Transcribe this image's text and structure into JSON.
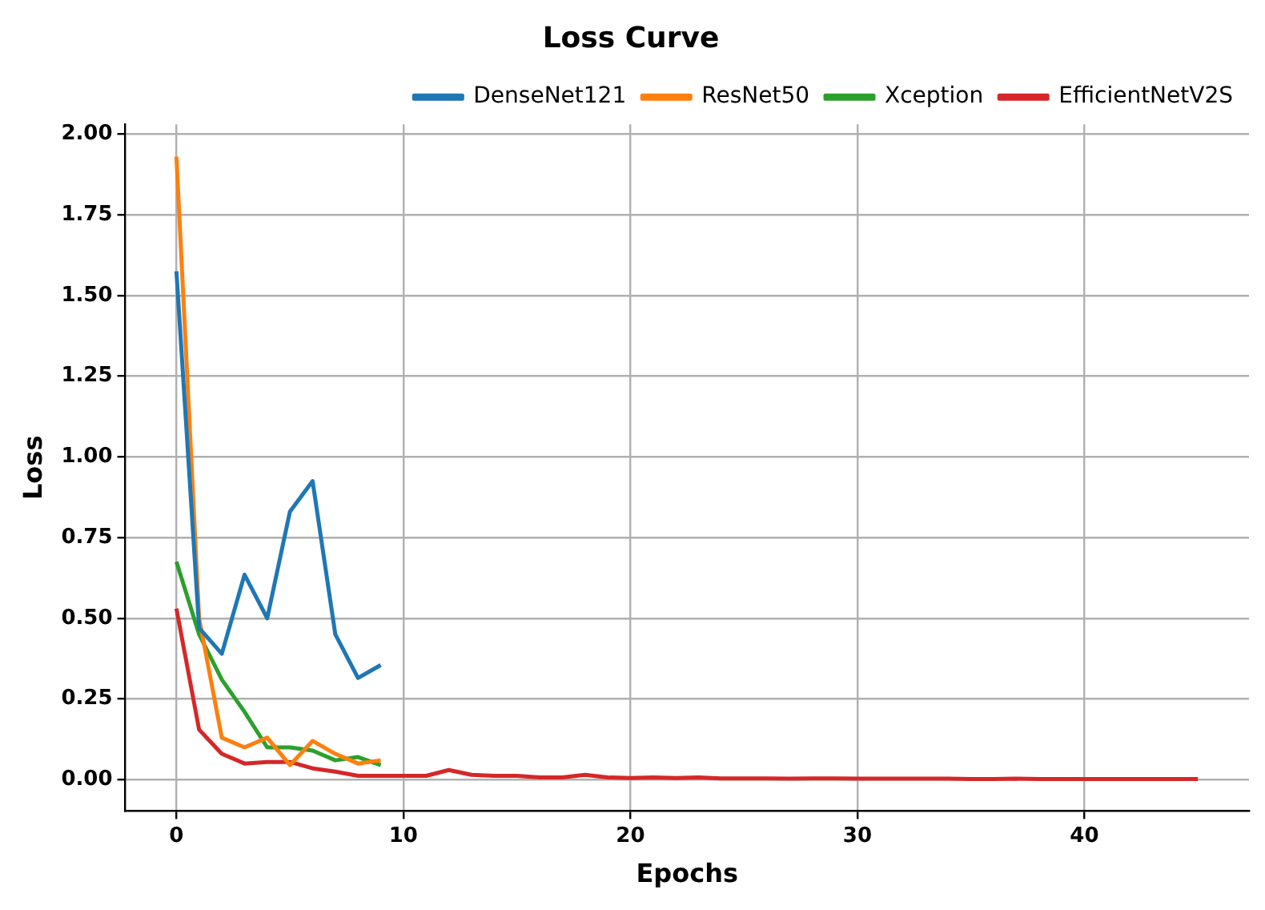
{
  "chart_data": {
    "type": "line",
    "title": "Loss Curve",
    "xlabel": "Epochs",
    "ylabel": "Loss",
    "xlim": [
      -2.25,
      47.25
    ],
    "ylim": [
      -0.097,
      2.03
    ],
    "xticks": [
      0,
      10,
      20,
      30,
      40
    ],
    "yticks": [
      {
        "value": 0,
        "label": "0.00"
      },
      {
        "value": 0.25,
        "label": "0.25"
      },
      {
        "value": 0.5,
        "label": "0.50"
      },
      {
        "value": 0.75,
        "label": "0.75"
      },
      {
        "value": 1,
        "label": "1.00"
      },
      {
        "value": 1.25,
        "label": "1.25"
      },
      {
        "value": 1.5,
        "label": "1.50"
      },
      {
        "value": 1.75,
        "label": "1.75"
      },
      {
        "value": 2,
        "label": "2.00"
      }
    ],
    "grid": true,
    "legend": "top right",
    "marker": "none",
    "line_style": "solid",
    "series": [
      {
        "name": "DenseNet121",
        "color": "#1f77b4",
        "x": [
          0,
          1,
          2,
          3,
          4,
          5,
          6,
          7,
          8,
          9
        ],
        "values": [
          1.575,
          0.47,
          0.39,
          0.635,
          0.5,
          0.83,
          0.925,
          0.45,
          0.315,
          0.355
        ]
      },
      {
        "name": "ResNet50",
        "color": "#ff7f0e",
        "x": [
          0,
          1,
          2,
          3,
          4,
          5,
          6,
          7,
          8,
          9
        ],
        "values": [
          1.93,
          0.5,
          0.13,
          0.1,
          0.13,
          0.045,
          0.12,
          0.08,
          0.05,
          0.06
        ]
      },
      {
        "name": "Xception",
        "color": "#2ca02c",
        "x": [
          0,
          1,
          2,
          3,
          4,
          5,
          6,
          7,
          8,
          9
        ],
        "values": [
          0.675,
          0.45,
          0.31,
          0.21,
          0.1,
          0.1,
          0.09,
          0.06,
          0.07,
          0.045
        ]
      },
      {
        "name": "EfficientNetV2S",
        "color": "#d62728",
        "x": [
          0,
          1,
          2,
          3,
          4,
          5,
          6,
          7,
          8,
          9,
          10,
          11,
          12,
          13,
          14,
          15,
          16,
          17,
          18,
          19,
          20,
          21,
          22,
          23,
          24,
          25,
          26,
          27,
          28,
          29,
          30,
          31,
          32,
          33,
          34,
          35,
          36,
          37,
          38,
          39,
          40,
          41,
          42,
          43,
          44,
          45
        ],
        "values": [
          0.53,
          0.155,
          0.08,
          0.05,
          0.055,
          0.055,
          0.035,
          0.025,
          0.012,
          0.012,
          0.012,
          0.012,
          0.03,
          0.015,
          0.012,
          0.012,
          0.007,
          0.007,
          0.015,
          0.007,
          0.005,
          0.007,
          0.005,
          0.007,
          0.004,
          0.004,
          0.004,
          0.003,
          0.004,
          0.004,
          0.003,
          0.003,
          0.003,
          0.003,
          0.003,
          0.002,
          0.002,
          0.003,
          0.002,
          0.002,
          0.002,
          0.002,
          0.002,
          0.002,
          0.002,
          0.002
        ]
      }
    ]
  }
}
